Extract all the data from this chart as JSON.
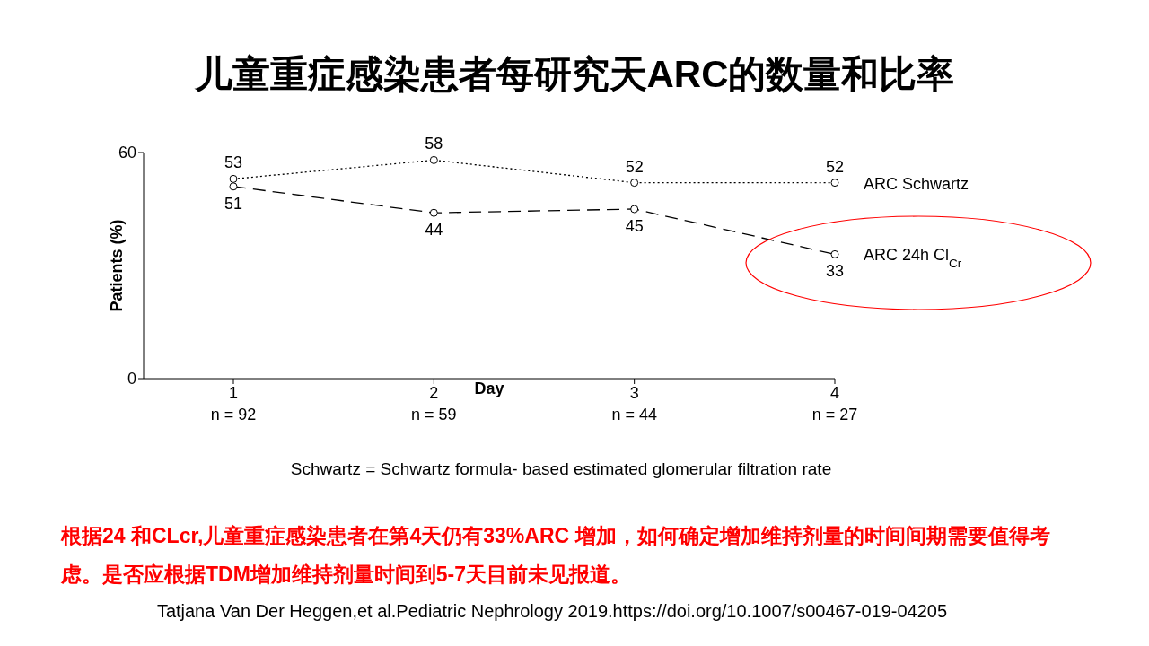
{
  "chart_data": {
    "type": "line",
    "title": "儿童重症感染患者每研究天ARC的数量和比率",
    "categories": [
      "1\nn = 92",
      "2\nn = 59",
      "3\nn = 44",
      "4\nn = 27"
    ],
    "xlabel": "Day",
    "ylabel": "Patients (%)",
    "ylim": [
      0,
      60
    ],
    "yticks": [
      0,
      60
    ],
    "series": [
      {
        "name": "ARC Schwartz",
        "color": "#000000",
        "values": [
          53,
          58,
          52,
          52
        ],
        "line_style": "dotted"
      },
      {
        "name": "ARC 24h Cl$_{Cr}$",
        "color": "#000000",
        "values": [
          51,
          44,
          45,
          33
        ],
        "line_style": "dashed"
      }
    ],
    "marker": "circle",
    "data_labels": true,
    "grid": false,
    "annotations": [
      "Schwartz = Schwartz formula- based estimated glomerular filtration rate",
      "根据24 和CLcr,儿童重症感染患者在第4天仍有33%ARC 增加，如何确定增加维持剂量的时间间期需要值得考虑。是否应根据TDM增加维持剂量时间到5-7天目前未见报道。",
      "Tatjana Van Der Heggen,et al.Pediatric Nephrology 2019.https://doi.org/10.1007/s00467-019-04205"
    ]
  }
}
